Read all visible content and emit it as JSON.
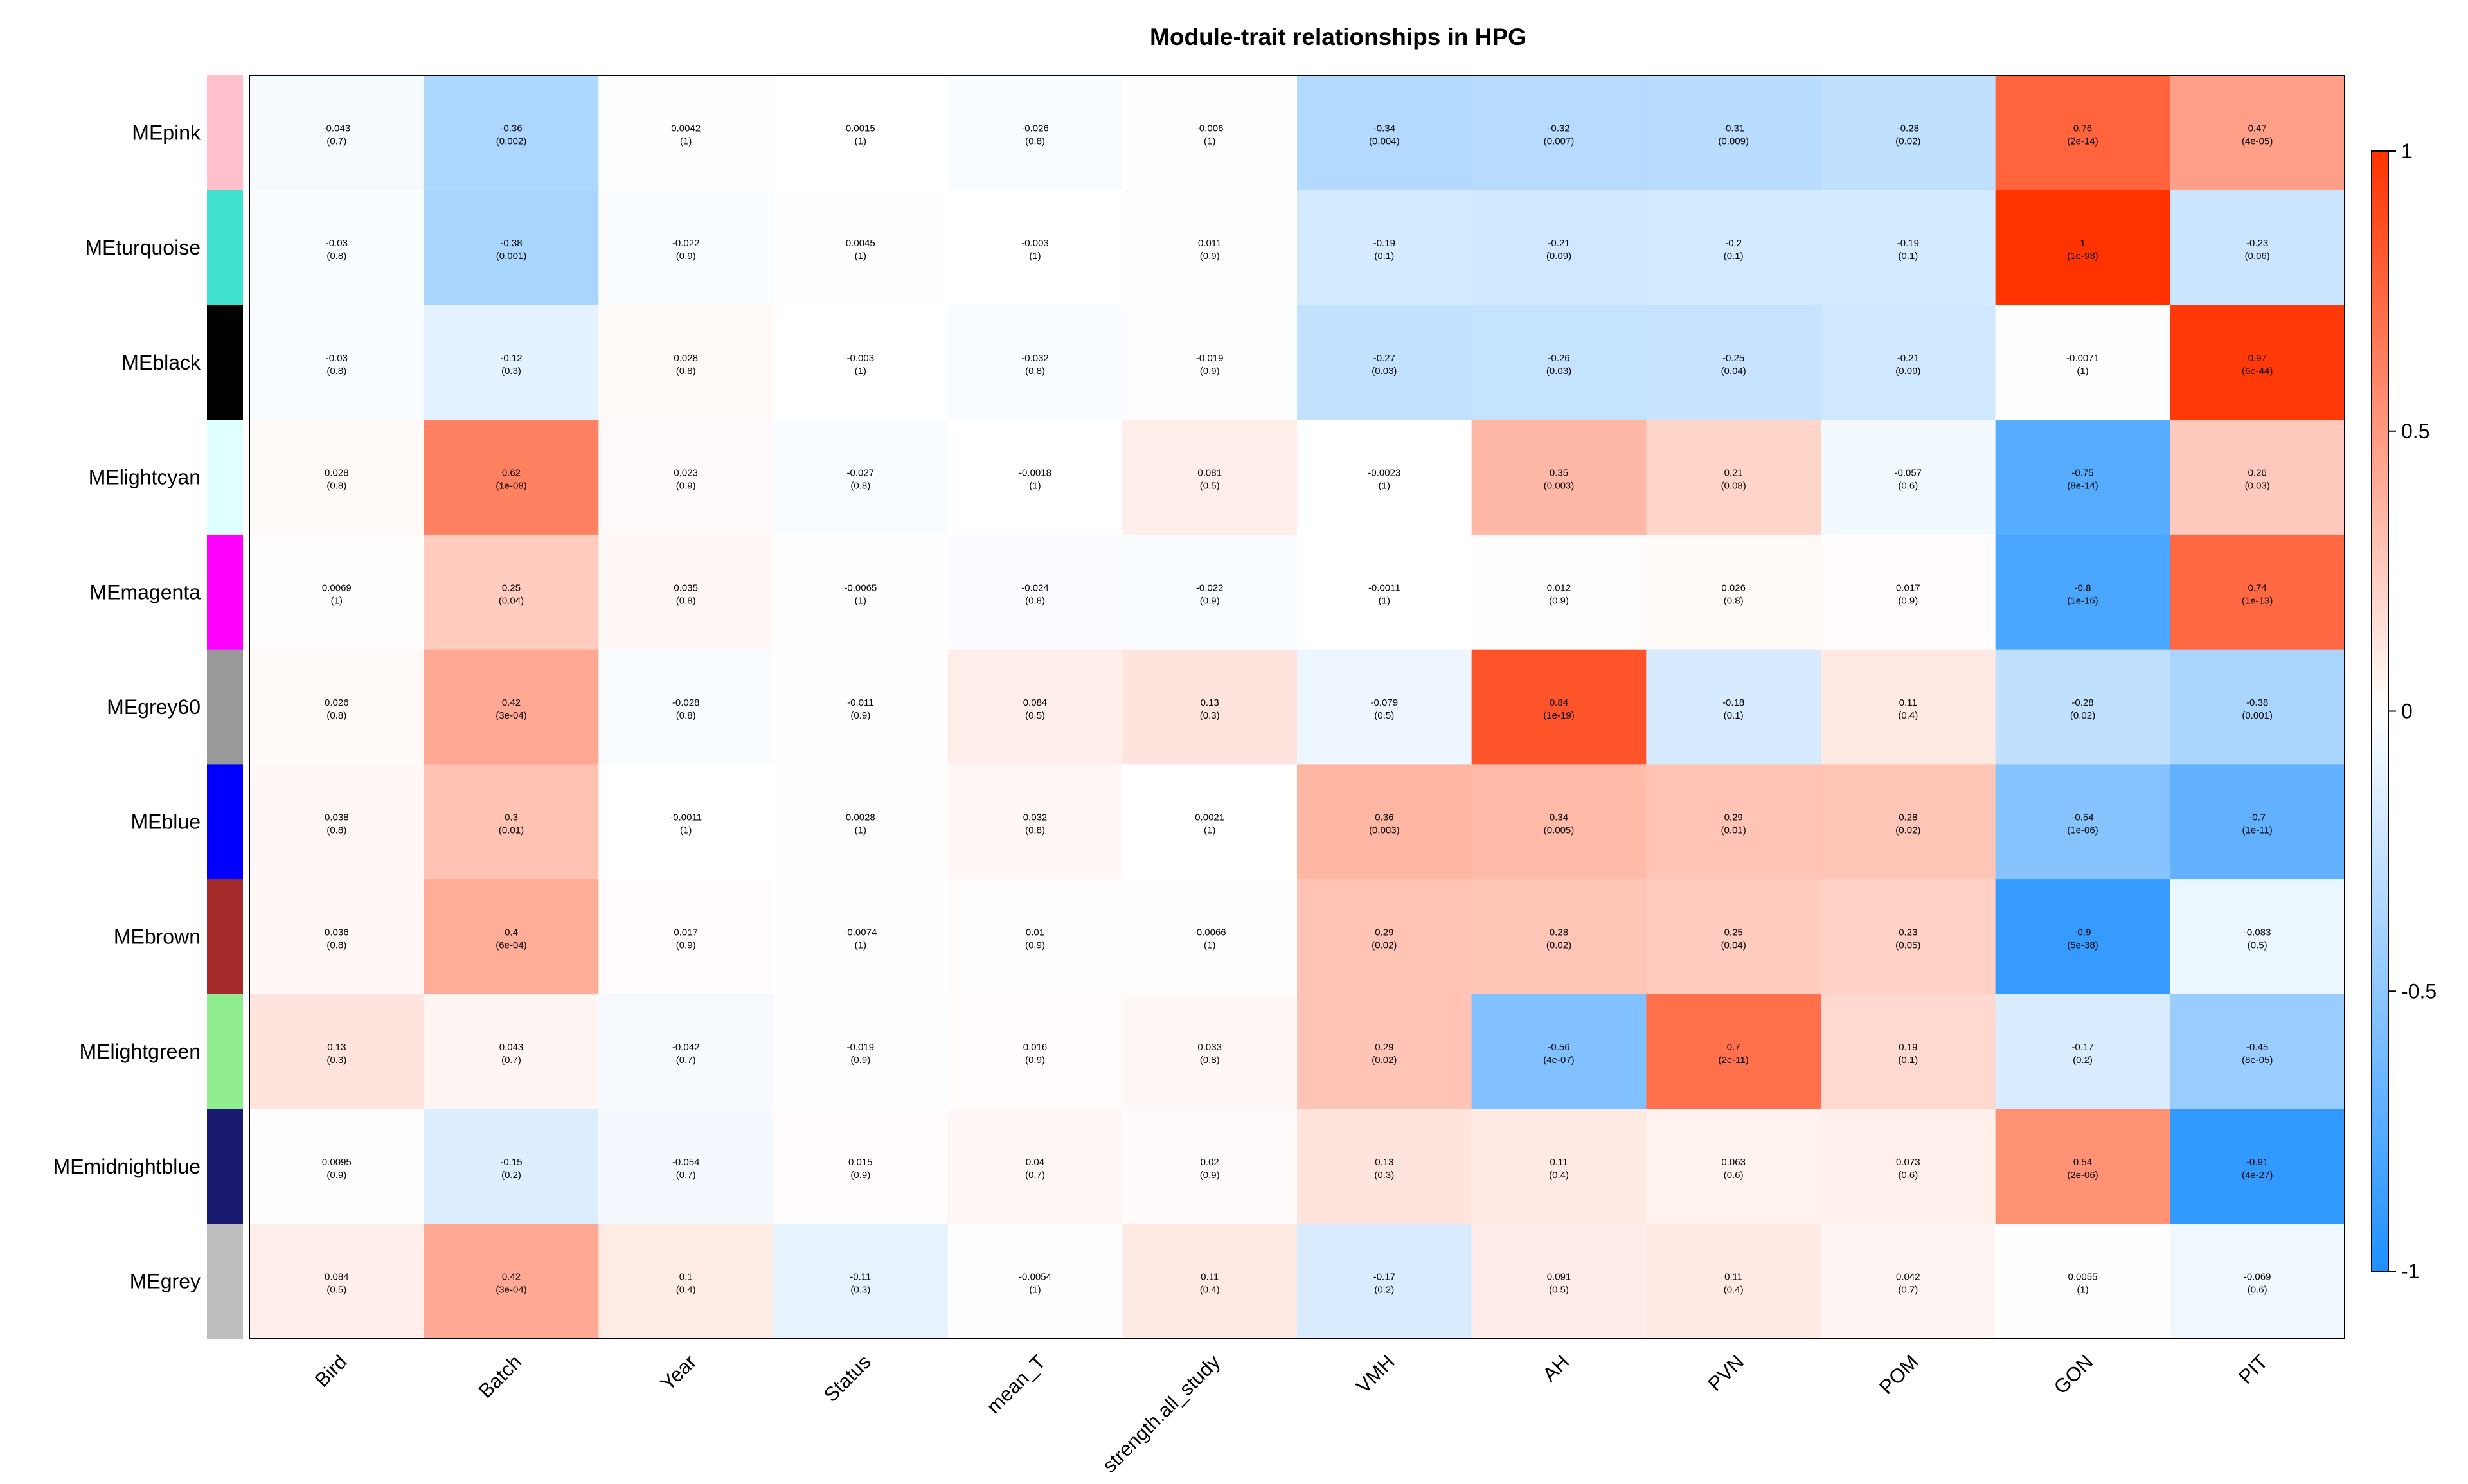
{
  "chart_data": {
    "type": "heatmap",
    "title": "Module-trait relationships in HPG",
    "rows": [
      "MEpink",
      "MEturquoise",
      "MEblack",
      "MElightcyan",
      "MEmagenta",
      "MEgrey60",
      "MEblue",
      "MEbrown",
      "MElightgreen",
      "MEmidnightblue",
      "MEgrey"
    ],
    "row_colors": [
      "#FFC0CB",
      "#40E0D0",
      "#000000",
      "#E0FFFF",
      "#FF00FF",
      "#999999",
      "#0000FF",
      "#A52A2A",
      "#90EE90",
      "#191970",
      "#BEBEBE"
    ],
    "columns": [
      "Bird",
      "Batch",
      "Year",
      "Status",
      "mean_T",
      "strength.all_study",
      "VMH",
      "AH",
      "PVN",
      "POM",
      "GON",
      "PIT"
    ],
    "values": [
      [
        -0.043,
        -0.36,
        0.0042,
        0.0015,
        -0.026,
        -0.006,
        -0.34,
        -0.32,
        -0.31,
        -0.28,
        0.76,
        0.47
      ],
      [
        -0.03,
        -0.38,
        -0.022,
        0.0045,
        -0.003,
        0.011,
        -0.19,
        -0.21,
        -0.2,
        -0.19,
        1,
        -0.23
      ],
      [
        -0.03,
        -0.12,
        0.028,
        -0.003,
        -0.032,
        -0.019,
        -0.27,
        -0.26,
        -0.25,
        -0.21,
        -0.0071,
        0.97
      ],
      [
        0.028,
        0.62,
        0.023,
        -0.027,
        -0.0018,
        0.081,
        -0.0023,
        0.35,
        0.21,
        -0.057,
        -0.75,
        0.26
      ],
      [
        0.0069,
        0.25,
        0.035,
        -0.0065,
        -0.024,
        -0.022,
        -0.0011,
        0.012,
        0.026,
        0.017,
        -0.8,
        0.74
      ],
      [
        0.026,
        0.42,
        -0.028,
        -0.011,
        0.084,
        0.13,
        -0.079,
        0.84,
        -0.18,
        0.11,
        -0.28,
        -0.38
      ],
      [
        0.038,
        0.3,
        -0.0011,
        0.0028,
        0.032,
        0.0021,
        0.36,
        0.34,
        0.29,
        0.28,
        -0.54,
        -0.7
      ],
      [
        0.036,
        0.4,
        0.017,
        -0.0074,
        0.01,
        -0.0066,
        0.29,
        0.28,
        0.25,
        0.23,
        -0.9,
        -0.083
      ],
      [
        0.13,
        0.043,
        -0.042,
        -0.019,
        0.016,
        0.033,
        0.29,
        -0.56,
        0.7,
        0.19,
        -0.17,
        -0.45
      ],
      [
        0.0095,
        -0.15,
        -0.054,
        0.015,
        0.04,
        0.02,
        0.13,
        0.11,
        0.063,
        0.073,
        0.54,
        -0.91
      ],
      [
        0.084,
        0.42,
        0.1,
        -0.11,
        -0.0054,
        0.11,
        -0.17,
        0.091,
        0.11,
        0.042,
        0.0055,
        -0.069
      ]
    ],
    "pvalues": [
      [
        "(0.7)",
        "(0.002)",
        "(1)",
        "(1)",
        "(0.8)",
        "(1)",
        "(0.004)",
        "(0.007)",
        "(0.009)",
        "(0.02)",
        "(2e-14)",
        "(4e-05)"
      ],
      [
        "(0.8)",
        "(0.001)",
        "(0.9)",
        "(1)",
        "(1)",
        "(0.9)",
        "(0.1)",
        "(0.09)",
        "(0.1)",
        "(0.1)",
        "(1e-93)",
        "(0.06)"
      ],
      [
        "(0.8)",
        "(0.3)",
        "(0.8)",
        "(1)",
        "(0.8)",
        "(0.9)",
        "(0.03)",
        "(0.03)",
        "(0.04)",
        "(0.09)",
        "(1)",
        "(6e-44)"
      ],
      [
        "(0.8)",
        "(1e-08)",
        "(0.9)",
        "(0.8)",
        "(1)",
        "(0.5)",
        "(1)",
        "(0.003)",
        "(0.08)",
        "(0.6)",
        "(8e-14)",
        "(0.03)"
      ],
      [
        "(1)",
        "(0.04)",
        "(0.8)",
        "(1)",
        "(0.8)",
        "(0.9)",
        "(1)",
        "(0.9)",
        "(0.8)",
        "(0.9)",
        "(1e-16)",
        "(1e-13)"
      ],
      [
        "(0.8)",
        "(3e-04)",
        "(0.8)",
        "(0.9)",
        "(0.5)",
        "(0.3)",
        "(0.5)",
        "(1e-19)",
        "(0.1)",
        "(0.4)",
        "(0.02)",
        "(0.001)"
      ],
      [
        "(0.8)",
        "(0.01)",
        "(1)",
        "(1)",
        "(0.8)",
        "(1)",
        "(0.003)",
        "(0.005)",
        "(0.01)",
        "(0.02)",
        "(1e-06)",
        "(1e-11)"
      ],
      [
        "(0.8)",
        "(6e-04)",
        "(0.9)",
        "(1)",
        "(0.9)",
        "(1)",
        "(0.02)",
        "(0.02)",
        "(0.04)",
        "(0.05)",
        "(5e-38)",
        "(0.5)"
      ],
      [
        "(0.3)",
        "(0.7)",
        "(0.7)",
        "(0.9)",
        "(0.9)",
        "(0.8)",
        "(0.02)",
        "(4e-07)",
        "(2e-11)",
        "(0.1)",
        "(0.2)",
        "(8e-05)"
      ],
      [
        "(0.9)",
        "(0.2)",
        "(0.7)",
        "(0.9)",
        "(0.7)",
        "(0.9)",
        "(0.3)",
        "(0.4)",
        "(0.6)",
        "(0.6)",
        "(2e-06)",
        "(4e-27)"
      ],
      [
        "(0.5)",
        "(3e-04)",
        "(0.4)",
        "(0.3)",
        "(1)",
        "(0.4)",
        "(0.2)",
        "(0.5)",
        "(0.4)",
        "(0.7)",
        "(1)",
        "(0.6)"
      ]
    ],
    "color_scale": {
      "min": -1,
      "max": 1,
      "low_color": "#1E90FF",
      "mid_color": "#FFFFFF",
      "high_color": "#FF3300",
      "ticks": [
        {
          "value": 1,
          "label": "1"
        },
        {
          "value": 0.5,
          "label": "0.5"
        },
        {
          "value": 0,
          "label": "0"
        },
        {
          "value": -0.5,
          "label": "-0.5"
        },
        {
          "value": -1,
          "label": "-1"
        }
      ]
    },
    "legend": "right"
  }
}
